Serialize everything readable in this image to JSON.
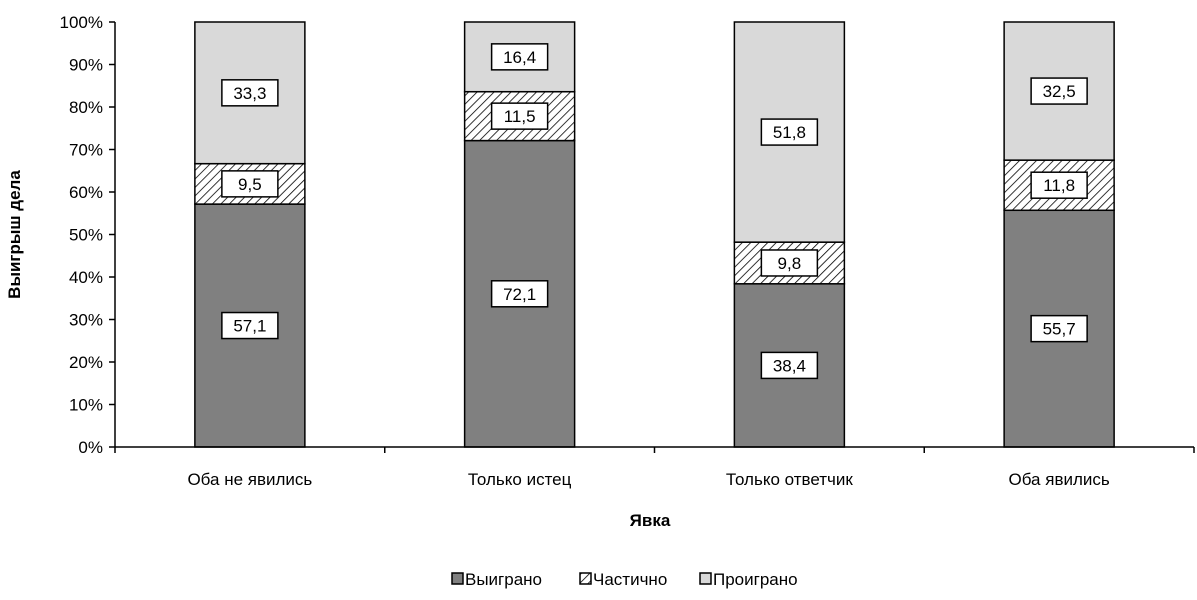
{
  "chart_data": {
    "type": "bar",
    "stacked": true,
    "percent_stacked": true,
    "categories": [
      "Оба не явились",
      "Только истец",
      "Только ответчик",
      "Оба явились"
    ],
    "series": [
      {
        "name": "Выиграно",
        "values": [
          57.1,
          72.1,
          38.4,
          55.7
        ],
        "color": "#808080",
        "pattern": "solid"
      },
      {
        "name": "Частично",
        "values": [
          9.5,
          11.5,
          9.8,
          11.8
        ],
        "color": "#ffffff",
        "pattern": "diagonal-hatch"
      },
      {
        "name": "Проиграно",
        "values": [
          33.3,
          16.4,
          51.8,
          32.5
        ],
        "color": "#d9d9d9",
        "pattern": "solid"
      }
    ],
    "data_labels": [
      [
        "57,1",
        "72,1",
        "38,4",
        "55,7"
      ],
      [
        "9,5",
        "11,5",
        "9,8",
        "11,8"
      ],
      [
        "33,3",
        "16,4",
        "51,8",
        "32,5"
      ]
    ],
    "xlabel": "Явка",
    "ylabel": "Выигрыш дела",
    "ylim": [
      0,
      100
    ],
    "y_ticks": [
      "0%",
      "10%",
      "20%",
      "30%",
      "40%",
      "50%",
      "60%",
      "70%",
      "80%",
      "90%",
      "100%"
    ],
    "grid": false,
    "legend_position": "bottom"
  }
}
